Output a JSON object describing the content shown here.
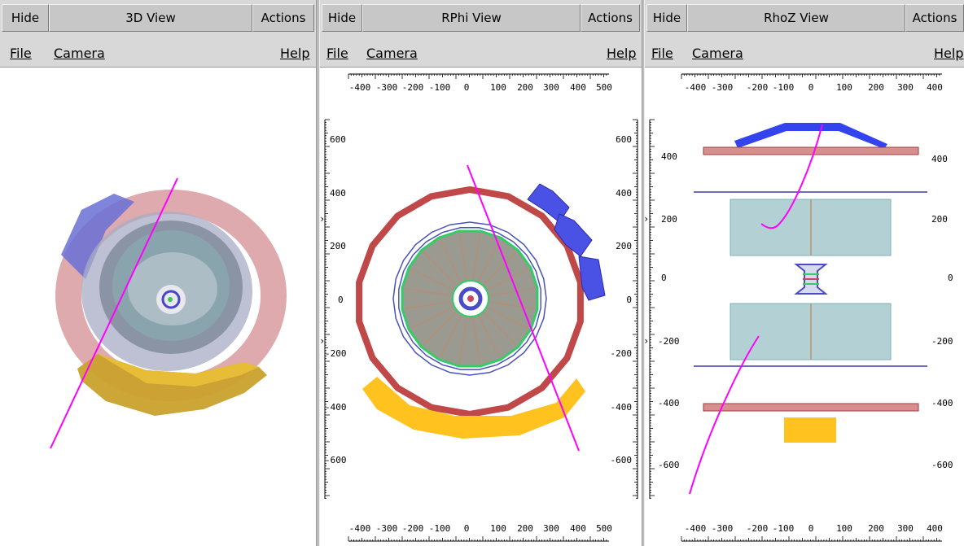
{
  "views": [
    {
      "hide": "Hide",
      "title": "3D View",
      "actions": "Actions",
      "menu": {
        "file": "File",
        "camera": "Camera",
        "help": "Help"
      }
    },
    {
      "hide": "Hide",
      "title": "RPhi View",
      "actions": "Actions",
      "menu": {
        "file": "File",
        "camera": "Camera",
        "help": "Help"
      }
    },
    {
      "hide": "Hide",
      "title": "RhoZ View",
      "actions": "Actions",
      "menu": {
        "file": "File",
        "camera": "Camera",
        "help": "Help"
      }
    }
  ],
  "rphi_axes": {
    "x_ticks": [
      "-400",
      "-300",
      "-200",
      "-100",
      "0",
      "100",
      "200",
      "300",
      "400",
      "500"
    ],
    "y_ticks": [
      "600",
      "400",
      "200",
      "0",
      "-200",
      "-400",
      "-600"
    ]
  },
  "rhoz_axes": {
    "x_ticks": [
      "-400",
      "-300",
      "-200",
      "-100",
      "0",
      "100",
      "200",
      "300",
      "400"
    ],
    "y_ticks": [
      "400",
      "200",
      "0",
      "-200",
      "-400",
      "-600"
    ]
  },
  "colors": {
    "track": "#ff00ff",
    "muon_barrel": "#c04848",
    "calorimeter_blue": "#3344ee",
    "calorimeter_yellow": "#ffc21f",
    "tracker_fill": "#a9cdd1"
  }
}
